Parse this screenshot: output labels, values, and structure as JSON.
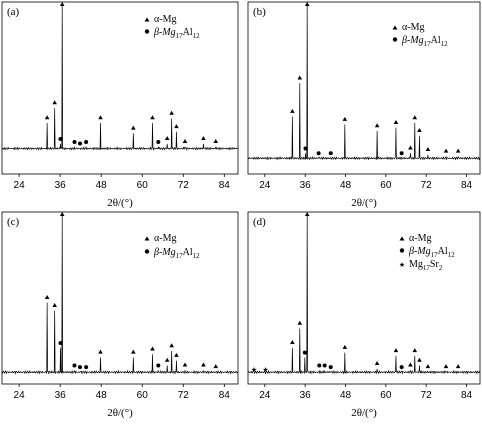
{
  "figure": {
    "panels": [
      {
        "label": "(a)"
      },
      {
        "label": "(b)"
      },
      {
        "label": "(c)"
      },
      {
        "label": "(d)"
      }
    ],
    "x_axis_label": "2θ/(°)",
    "x_tick_labels": [
      "24",
      "36",
      "48",
      "60",
      "72",
      "84"
    ]
  },
  "legend": {
    "alpha_mg": "α-Mg",
    "beta_prefix": "β-Mg",
    "beta_sub1": "17",
    "beta_mid": "Al",
    "beta_sub2": "12",
    "sr_prefix": "Mg",
    "sr_sub1": "17",
    "sr_mid": "Sr",
    "sr_sub2": "2"
  },
  "chart_data": [
    {
      "type": "line",
      "panel": "(a)",
      "xlabel": "2θ/(°)",
      "xlim": [
        19,
        88
      ],
      "ylim": [
        0,
        100
      ],
      "x_ticks": [
        24,
        36,
        48,
        60,
        72,
        84
      ],
      "baseline": 3,
      "phases": [
        "α-Mg",
        "β-Mg17Al12"
      ],
      "peaks": [
        {
          "x": 32.2,
          "y": 20,
          "phase": "alpha"
        },
        {
          "x": 34.4,
          "y": 30,
          "phase": "alpha"
        },
        {
          "x": 36.6,
          "y": 100,
          "phase": "alpha"
        },
        {
          "x": 36.1,
          "y": 6,
          "phase": "beta"
        },
        {
          "x": 40.2,
          "y": 4,
          "phase": "beta"
        },
        {
          "x": 41.8,
          "y": 3,
          "phase": "beta"
        },
        {
          "x": 43.6,
          "y": 4,
          "phase": "beta"
        },
        {
          "x": 47.8,
          "y": 20,
          "phase": "alpha"
        },
        {
          "x": 57.4,
          "y": 13,
          "phase": "alpha"
        },
        {
          "x": 63.0,
          "y": 20,
          "phase": "alpha"
        },
        {
          "x": 64.7,
          "y": 4,
          "phase": "beta"
        },
        {
          "x": 67.3,
          "y": 6,
          "phase": "alpha"
        },
        {
          "x": 68.6,
          "y": 23,
          "phase": "alpha"
        },
        {
          "x": 70.0,
          "y": 14,
          "phase": "alpha"
        },
        {
          "x": 72.5,
          "y": 4,
          "phase": "alpha"
        },
        {
          "x": 77.9,
          "y": 6,
          "phase": "alpha"
        },
        {
          "x": 81.5,
          "y": 4,
          "phase": "alpha"
        }
      ]
    },
    {
      "type": "line",
      "panel": "(b)",
      "xlabel": "2θ/(°)",
      "xlim": [
        19,
        88
      ],
      "ylim": [
        0,
        100
      ],
      "x_ticks": [
        24,
        36,
        48,
        60,
        72,
        84
      ],
      "baseline": 3,
      "phases": [
        "α-Mg",
        "β-Mg17Al12"
      ],
      "peaks": [
        {
          "x": 32.2,
          "y": 29,
          "phase": "alpha"
        },
        {
          "x": 34.4,
          "y": 50,
          "phase": "alpha"
        },
        {
          "x": 36.6,
          "y": 100,
          "phase": "alpha"
        },
        {
          "x": 36.1,
          "y": 6,
          "phase": "beta"
        },
        {
          "x": 40.0,
          "y": 3,
          "phase": "beta"
        },
        {
          "x": 43.6,
          "y": 3,
          "phase": "beta"
        },
        {
          "x": 47.8,
          "y": 24,
          "phase": "alpha"
        },
        {
          "x": 57.4,
          "y": 20,
          "phase": "alpha"
        },
        {
          "x": 63.0,
          "y": 22,
          "phase": "alpha"
        },
        {
          "x": 64.7,
          "y": 3,
          "phase": "beta"
        },
        {
          "x": 67.3,
          "y": 6,
          "phase": "alpha"
        },
        {
          "x": 68.6,
          "y": 25,
          "phase": "alpha"
        },
        {
          "x": 70.0,
          "y": 17,
          "phase": "alpha"
        },
        {
          "x": 72.5,
          "y": 5,
          "phase": "alpha"
        },
        {
          "x": 77.9,
          "y": 4,
          "phase": "alpha"
        },
        {
          "x": 81.5,
          "y": 4,
          "phase": "alpha"
        }
      ]
    },
    {
      "type": "line",
      "panel": "(c)",
      "xlabel": "2θ/(°)",
      "xlim": [
        19,
        88
      ],
      "ylim": [
        0,
        100
      ],
      "x_ticks": [
        24,
        36,
        48,
        60,
        72,
        84
      ],
      "baseline": 3,
      "phases": [
        "α-Mg",
        "β-Mg17Al12"
      ],
      "peaks": [
        {
          "x": 32.2,
          "y": 46,
          "phase": "alpha"
        },
        {
          "x": 34.4,
          "y": 41,
          "phase": "alpha"
        },
        {
          "x": 36.6,
          "y": 100,
          "phase": "alpha"
        },
        {
          "x": 36.1,
          "y": 18,
          "phase": "beta"
        },
        {
          "x": 40.2,
          "y": 4,
          "phase": "beta"
        },
        {
          "x": 41.8,
          "y": 3,
          "phase": "beta"
        },
        {
          "x": 43.6,
          "y": 3,
          "phase": "beta"
        },
        {
          "x": 47.8,
          "y": 12,
          "phase": "alpha"
        },
        {
          "x": 57.4,
          "y": 12,
          "phase": "alpha"
        },
        {
          "x": 63.0,
          "y": 14,
          "phase": "alpha"
        },
        {
          "x": 64.7,
          "y": 4,
          "phase": "beta"
        },
        {
          "x": 67.3,
          "y": 7,
          "phase": "alpha"
        },
        {
          "x": 68.6,
          "y": 16,
          "phase": "alpha"
        },
        {
          "x": 70.0,
          "y": 10,
          "phase": "alpha"
        },
        {
          "x": 72.5,
          "y": 4,
          "phase": "alpha"
        },
        {
          "x": 77.9,
          "y": 4,
          "phase": "alpha"
        },
        {
          "x": 81.5,
          "y": 3,
          "phase": "alpha"
        }
      ]
    },
    {
      "type": "line",
      "panel": "(d)",
      "xlabel": "2θ/(°)",
      "xlim": [
        19,
        88
      ],
      "ylim": [
        0,
        100
      ],
      "x_ticks": [
        24,
        36,
        48,
        60,
        72,
        84
      ],
      "baseline": 3,
      "phases": [
        "α-Mg",
        "β-Mg17Al12",
        "Mg17Sr2"
      ],
      "peaks": [
        {
          "x": 20.8,
          "y": 2,
          "phase": "sr"
        },
        {
          "x": 24.2,
          "y": 2,
          "phase": "sr"
        },
        {
          "x": 32.2,
          "y": 18,
          "phase": "alpha"
        },
        {
          "x": 34.4,
          "y": 30,
          "phase": "alpha"
        },
        {
          "x": 36.6,
          "y": 100,
          "phase": "alpha"
        },
        {
          "x": 35.9,
          "y": 12,
          "phase": "beta"
        },
        {
          "x": 40.2,
          "y": 4,
          "phase": "beta"
        },
        {
          "x": 41.8,
          "y": 4,
          "phase": "beta"
        },
        {
          "x": 43.6,
          "y": 3,
          "phase": "beta"
        },
        {
          "x": 47.8,
          "y": 15,
          "phase": "alpha"
        },
        {
          "x": 57.4,
          "y": 5,
          "phase": "alpha"
        },
        {
          "x": 63.0,
          "y": 13,
          "phase": "alpha"
        },
        {
          "x": 64.7,
          "y": 3,
          "phase": "beta"
        },
        {
          "x": 67.3,
          "y": 4,
          "phase": "alpha"
        },
        {
          "x": 68.6,
          "y": 13,
          "phase": "alpha"
        },
        {
          "x": 70.0,
          "y": 7,
          "phase": "alpha"
        },
        {
          "x": 72.5,
          "y": 3,
          "phase": "alpha"
        },
        {
          "x": 77.9,
          "y": 3,
          "phase": "alpha"
        },
        {
          "x": 81.5,
          "y": 3,
          "phase": "alpha"
        }
      ]
    }
  ]
}
